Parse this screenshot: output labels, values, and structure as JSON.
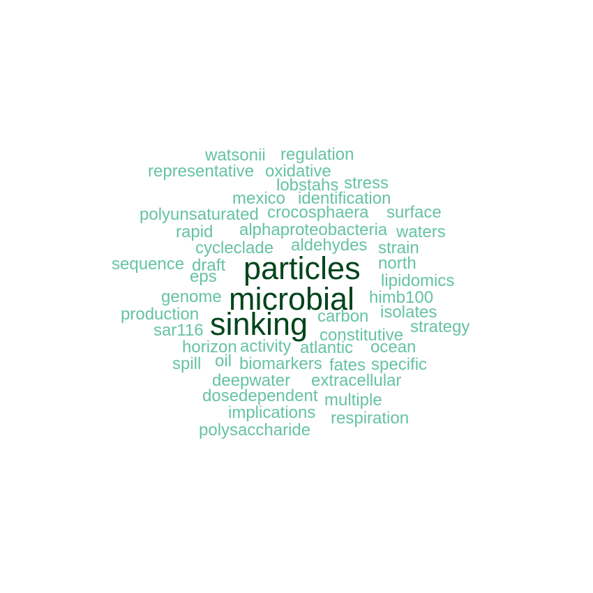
{
  "colors": {
    "primary": "#00441b",
    "secondary": "#66c2a4"
  },
  "words": [
    {
      "text": "particles",
      "weight": "large"
    },
    {
      "text": "microbial",
      "weight": "large"
    },
    {
      "text": "sinking",
      "weight": "large"
    },
    {
      "text": "watsonii",
      "weight": "small"
    },
    {
      "text": "regulation",
      "weight": "small"
    },
    {
      "text": "representative",
      "weight": "small"
    },
    {
      "text": "oxidative",
      "weight": "small"
    },
    {
      "text": "lobstahs",
      "weight": "small"
    },
    {
      "text": "stress",
      "weight": "small"
    },
    {
      "text": "mexico",
      "weight": "small"
    },
    {
      "text": "identification",
      "weight": "small"
    },
    {
      "text": "polyunsaturated",
      "weight": "small"
    },
    {
      "text": "crocosphaera",
      "weight": "small"
    },
    {
      "text": "surface",
      "weight": "small"
    },
    {
      "text": "rapid",
      "weight": "small"
    },
    {
      "text": "alphaproteobacteria",
      "weight": "small"
    },
    {
      "text": "waters",
      "weight": "small"
    },
    {
      "text": "cycleclade",
      "weight": "small"
    },
    {
      "text": "aldehydes",
      "weight": "small"
    },
    {
      "text": "strain",
      "weight": "small"
    },
    {
      "text": "sequence",
      "weight": "small"
    },
    {
      "text": "draft",
      "weight": "small"
    },
    {
      "text": "north",
      "weight": "small"
    },
    {
      "text": "eps",
      "weight": "small"
    },
    {
      "text": "lipidomics",
      "weight": "small"
    },
    {
      "text": "genome",
      "weight": "small"
    },
    {
      "text": "himb100",
      "weight": "small"
    },
    {
      "text": "production",
      "weight": "small"
    },
    {
      "text": "isolates",
      "weight": "small"
    },
    {
      "text": "carbon",
      "weight": "small"
    },
    {
      "text": "sar116",
      "weight": "small"
    },
    {
      "text": "constitutive",
      "weight": "small"
    },
    {
      "text": "strategy",
      "weight": "small"
    },
    {
      "text": "horizon",
      "weight": "small"
    },
    {
      "text": "activity",
      "weight": "small"
    },
    {
      "text": "atlantic",
      "weight": "small"
    },
    {
      "text": "ocean",
      "weight": "small"
    },
    {
      "text": "spill",
      "weight": "small"
    },
    {
      "text": "oil",
      "weight": "small"
    },
    {
      "text": "biomarkers",
      "weight": "small"
    },
    {
      "text": "fates",
      "weight": "small"
    },
    {
      "text": "specific",
      "weight": "small"
    },
    {
      "text": "deepwater",
      "weight": "small"
    },
    {
      "text": "extracellular",
      "weight": "small"
    },
    {
      "text": "dosedependent",
      "weight": "small"
    },
    {
      "text": "multiple",
      "weight": "small"
    },
    {
      "text": "implications",
      "weight": "small"
    },
    {
      "text": "respiration",
      "weight": "small"
    },
    {
      "text": "polysaccharide",
      "weight": "small"
    }
  ]
}
